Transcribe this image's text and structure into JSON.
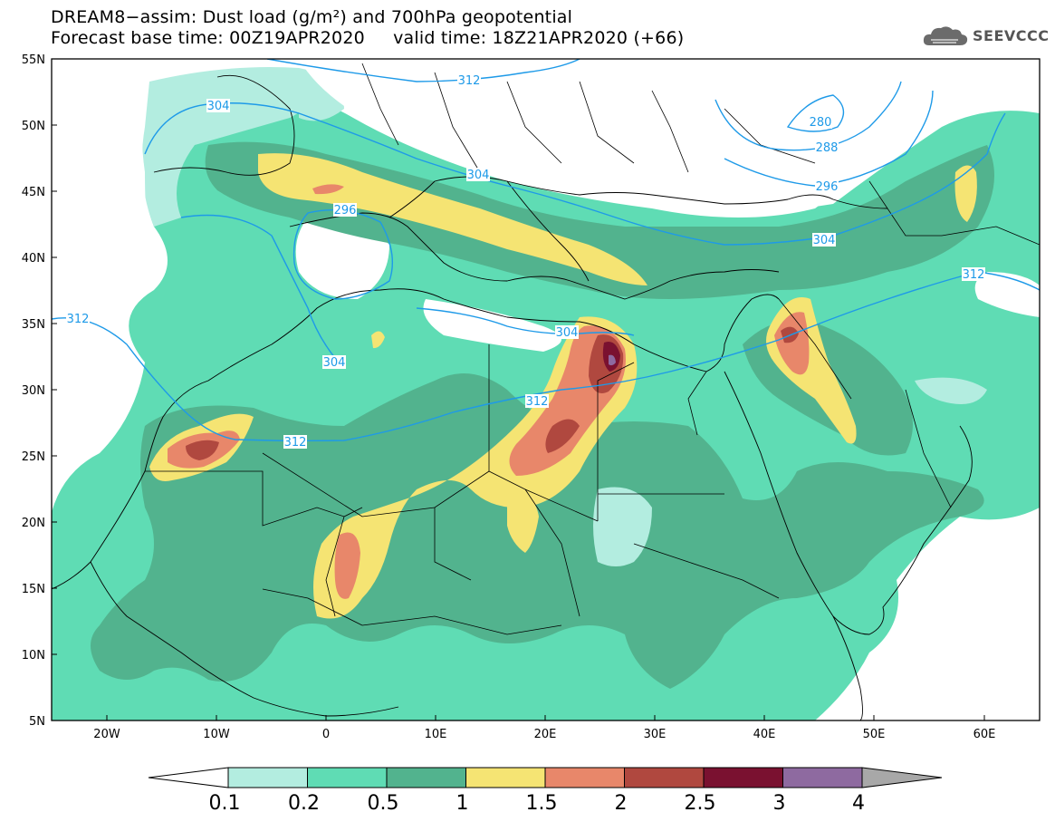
{
  "header": {
    "title_line1": "DREAM8−assim: Dust load (g/m²) and 700hPa geopotential",
    "title_line2": "Forecast base time: 00Z19APR2020     valid time: 18Z21APR2020 (+66)"
  },
  "logo": {
    "text": "SEEVCCC",
    "icon": "cloud-icon"
  },
  "map": {
    "lat_labels": [
      "55N",
      "50N",
      "45N",
      "40N",
      "35N",
      "30N",
      "25N",
      "20N",
      "15N",
      "10N",
      "5N"
    ],
    "lon_labels": [
      "20W",
      "10W",
      "0",
      "10E",
      "20E",
      "30E",
      "40E",
      "50E",
      "60E"
    ],
    "contour_labels": [
      "312",
      "304",
      "280",
      "288",
      "296",
      "304",
      "296",
      "304",
      "312",
      "312",
      "304",
      "312",
      "304",
      "312"
    ]
  },
  "colorbar": {
    "labels": [
      "0.1",
      "0.2",
      "0.5",
      "1",
      "1.5",
      "2",
      "2.5",
      "3",
      "4"
    ],
    "colors": [
      "#ffffff",
      "#b3ede0",
      "#5fdcb4",
      "#52b38e",
      "#f5e473",
      "#e8876a",
      "#b0483f",
      "#7a1130",
      "#8e6aa0",
      "#a8a8a8"
    ]
  }
}
